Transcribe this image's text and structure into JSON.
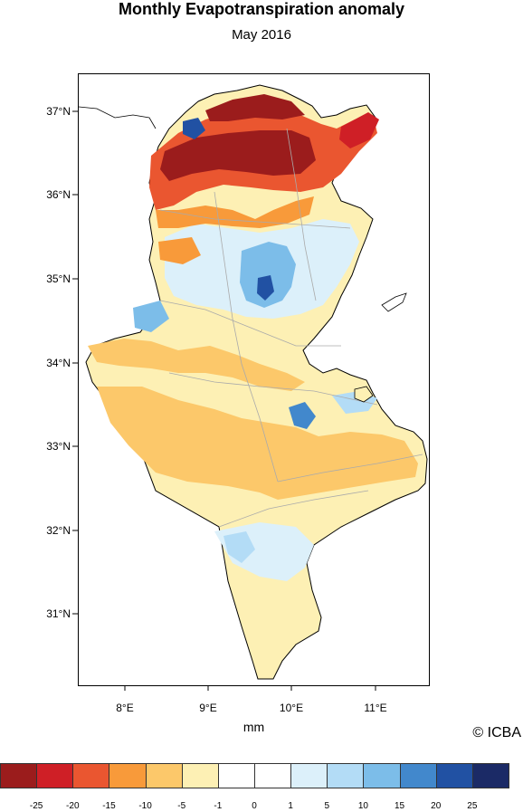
{
  "title": "Monthly Evapotranspiration anomaly",
  "subtitle": "May 2016",
  "xaxis_title": "mm",
  "credit": "© ICBA",
  "lat_labels": [
    "37°N",
    "36°N",
    "35°N",
    "34°N",
    "33°N",
    "32°N",
    "31°N"
  ],
  "lon_labels": [
    "8°E",
    "9°E",
    "10°E",
    "11°E"
  ],
  "colorbar": {
    "labels": [
      "-25",
      "-20",
      "-15",
      "-10",
      "-5",
      "-1",
      "0",
      "1",
      "5",
      "10",
      "15",
      "20",
      "25"
    ],
    "colors": [
      "#9b1c1c",
      "#cf1f26",
      "#ea5630",
      "#f89a3a",
      "#fcc86a",
      "#fdf0b4",
      "#ffffff",
      "#ffffff",
      "#dcf0fa",
      "#b3dcf6",
      "#7cbde9",
      "#4288cc",
      "#2151a3",
      "#1b2a66"
    ]
  }
}
